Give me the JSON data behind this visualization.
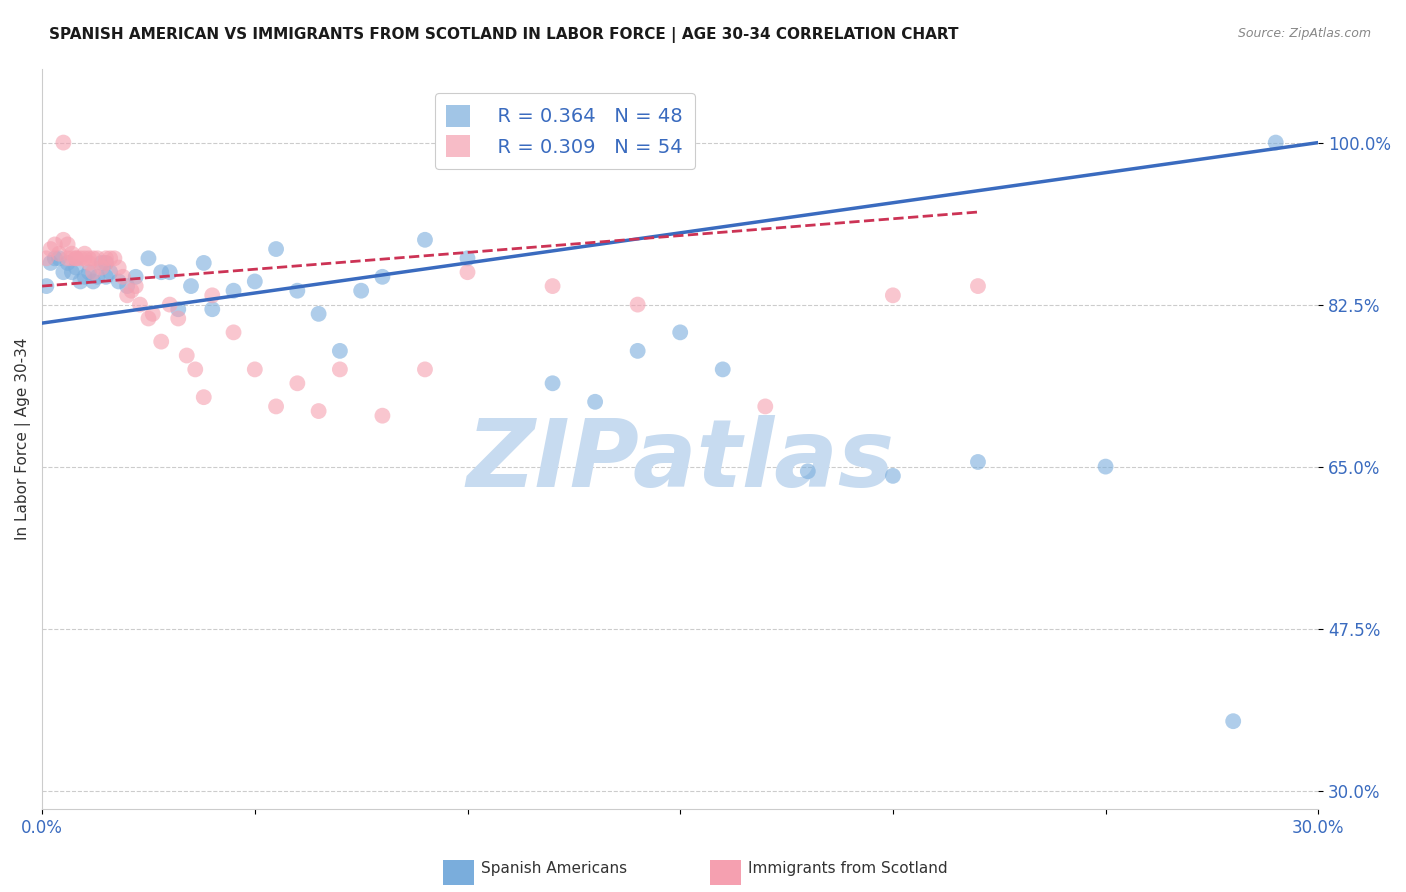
{
  "title": "SPANISH AMERICAN VS IMMIGRANTS FROM SCOTLAND IN LABOR FORCE | AGE 30-34 CORRELATION CHART",
  "source": "Source: ZipAtlas.com",
  "ylabel": "In Labor Force | Age 30-34",
  "xlim": [
    0.0,
    0.3
  ],
  "ylim": [
    0.28,
    1.08
  ],
  "ytick_positions": [
    0.3,
    0.475,
    0.65,
    0.825,
    1.0
  ],
  "yticklabels": [
    "30.0%",
    "47.5%",
    "65.0%",
    "82.5%",
    "100.0%"
  ],
  "grid_color": "#cccccc",
  "background_color": "#ffffff",
  "series1_color": "#7aaddc",
  "series2_color": "#f5a0b0",
  "series1_label": "Spanish Americans",
  "series2_label": "Immigrants from Scotland",
  "series1_R": 0.364,
  "series1_N": 48,
  "series2_R": 0.309,
  "series2_N": 54,
  "legend_text_color": "#3a6bbf",
  "trendline1_color": "#3a6bbf",
  "trendline2_color": "#cc3355",
  "watermark": "ZIPatlas",
  "watermark_color_r": 0.78,
  "watermark_color_g": 0.86,
  "watermark_color_b": 0.94,
  "series1_x": [
    0.001,
    0.002,
    0.003,
    0.004,
    0.005,
    0.006,
    0.007,
    0.008,
    0.009,
    0.01,
    0.011,
    0.012,
    0.013,
    0.014,
    0.015,
    0.015,
    0.016,
    0.018,
    0.02,
    0.022,
    0.025,
    0.028,
    0.03,
    0.032,
    0.035,
    0.038,
    0.04,
    0.045,
    0.05,
    0.055,
    0.06,
    0.065,
    0.07,
    0.075,
    0.08,
    0.09,
    0.1,
    0.12,
    0.13,
    0.14,
    0.15,
    0.16,
    0.18,
    0.2,
    0.22,
    0.25,
    0.28,
    0.29
  ],
  "series1_y": [
    0.845,
    0.87,
    0.875,
    0.875,
    0.86,
    0.87,
    0.86,
    0.865,
    0.85,
    0.855,
    0.86,
    0.85,
    0.855,
    0.87,
    0.855,
    0.87,
    0.86,
    0.85,
    0.845,
    0.855,
    0.875,
    0.86,
    0.86,
    0.82,
    0.845,
    0.87,
    0.82,
    0.84,
    0.85,
    0.885,
    0.84,
    0.815,
    0.775,
    0.84,
    0.855,
    0.895,
    0.875,
    0.74,
    0.72,
    0.775,
    0.795,
    0.755,
    0.645,
    0.64,
    0.655,
    0.65,
    0.375,
    1.0
  ],
  "series2_x": [
    0.001,
    0.002,
    0.003,
    0.004,
    0.005,
    0.005,
    0.006,
    0.006,
    0.007,
    0.007,
    0.008,
    0.008,
    0.009,
    0.01,
    0.01,
    0.011,
    0.011,
    0.012,
    0.012,
    0.013,
    0.014,
    0.015,
    0.015,
    0.016,
    0.017,
    0.018,
    0.019,
    0.02,
    0.021,
    0.022,
    0.023,
    0.025,
    0.026,
    0.028,
    0.03,
    0.032,
    0.034,
    0.036,
    0.038,
    0.04,
    0.045,
    0.05,
    0.055,
    0.06,
    0.065,
    0.07,
    0.08,
    0.09,
    0.1,
    0.12,
    0.14,
    0.17,
    0.2,
    0.22
  ],
  "series2_y": [
    0.875,
    0.885,
    0.89,
    0.88,
    0.895,
    1.0,
    0.875,
    0.89,
    0.875,
    0.88,
    0.875,
    0.875,
    0.875,
    0.875,
    0.88,
    0.875,
    0.87,
    0.875,
    0.86,
    0.875,
    0.865,
    0.875,
    0.87,
    0.875,
    0.875,
    0.865,
    0.855,
    0.835,
    0.84,
    0.845,
    0.825,
    0.81,
    0.815,
    0.785,
    0.825,
    0.81,
    0.77,
    0.755,
    0.725,
    0.835,
    0.795,
    0.755,
    0.715,
    0.74,
    0.71,
    0.755,
    0.705,
    0.755,
    0.86,
    0.845,
    0.825,
    0.715,
    0.835,
    0.845
  ],
  "trendline1_x0": 0.0,
  "trendline1_y0": 0.805,
  "trendline1_x1": 0.3,
  "trendline1_y1": 1.0,
  "trendline2_x0": 0.0,
  "trendline2_y0": 0.845,
  "trendline2_x1": 0.22,
  "trendline2_y1": 0.925
}
